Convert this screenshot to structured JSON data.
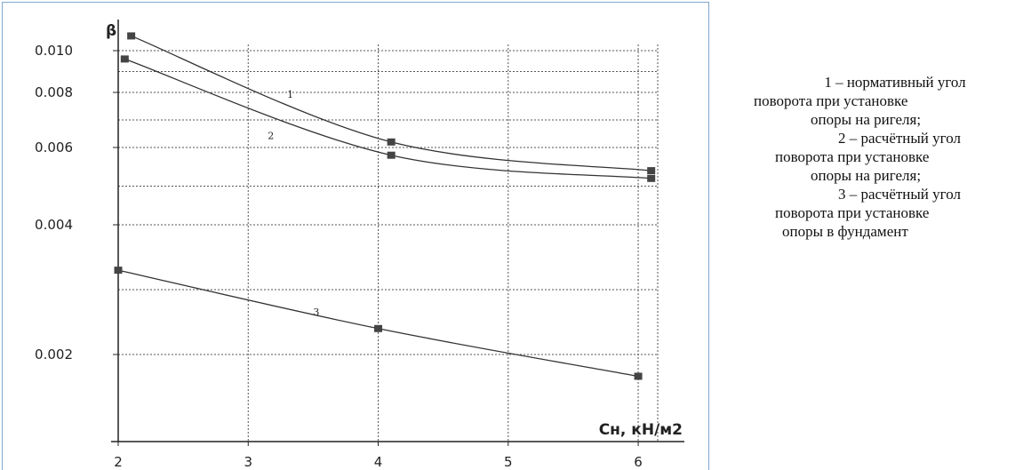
{
  "chart_data": {
    "type": "line",
    "xlabel": "Сн, кН/м2",
    "ylabel": "β",
    "xlim": [
      2,
      6.15
    ],
    "ylim": [
      0.0012,
      0.0107
    ],
    "x_ticks": [
      "2",
      "3",
      "4",
      "5",
      "6"
    ],
    "y_ticks": [
      "0.002",
      "0.004",
      "0.006",
      "0.008",
      "0.010"
    ],
    "grid": true,
    "series": [
      {
        "name": "1",
        "points": [
          [
            2.1,
            0.0104
          ],
          [
            4.1,
            0.0062
          ],
          [
            6.1,
            0.0054
          ]
        ],
        "marker": "square"
      },
      {
        "name": "2",
        "points": [
          [
            2.05,
            0.0096
          ],
          [
            4.1,
            0.0058
          ],
          [
            6.1,
            0.0052
          ]
        ],
        "marker": "square"
      },
      {
        "name": "3",
        "points": [
          [
            2.0,
            0.0033
          ],
          [
            4.0,
            0.0024
          ],
          [
            6.0,
            0.0018
          ]
        ],
        "marker": "square"
      }
    ]
  },
  "legend": {
    "items": [
      {
        "line1": "1 – нормативный угол",
        "line2": "поворота при установке",
        "line3": "опоры на ригеля;"
      },
      {
        "line1": "2 – расчётный угол",
        "line2": "поворота при установке",
        "line3": "опоры на ригеля;"
      },
      {
        "line1": "3 – расчётный угол",
        "line2": "поворота при установке",
        "line3": "опоры в фундамент"
      }
    ]
  }
}
